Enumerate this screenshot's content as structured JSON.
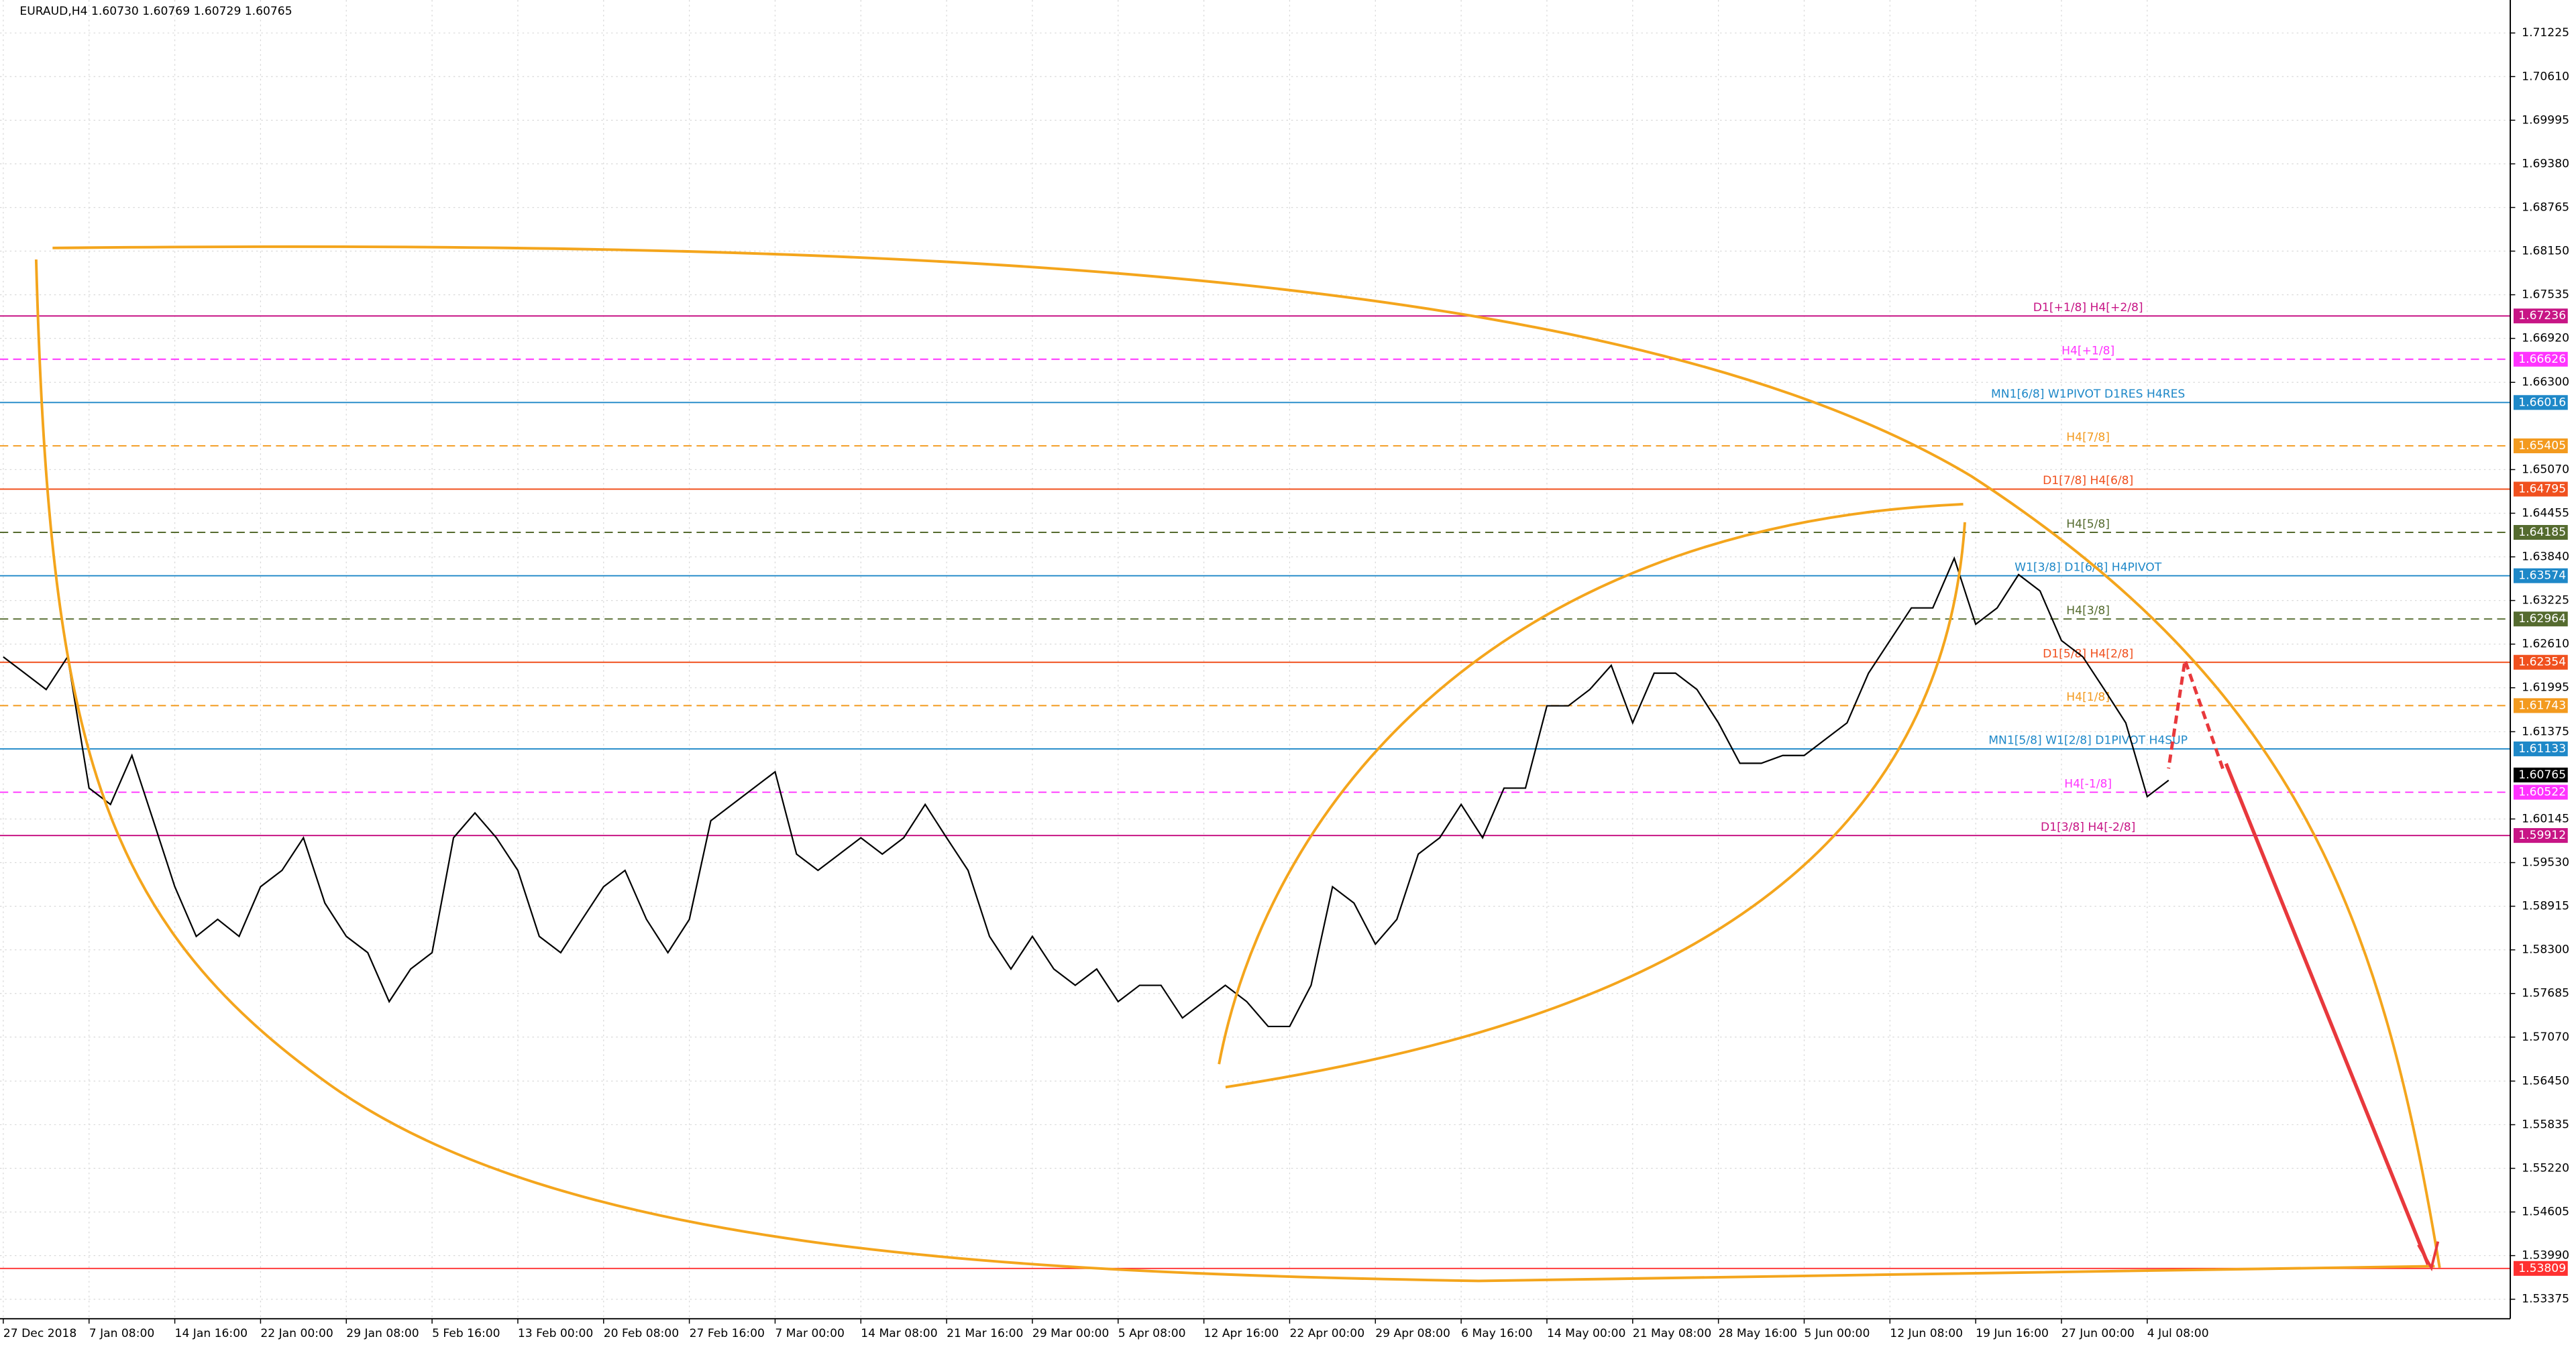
{
  "chart_data": {
    "type": "line",
    "title": "EURAUD,H4  1.60730 1.60769 1.60729 1.60765",
    "color": "#000000",
    "categories": [
      "27 Dec 2018",
      null,
      null,
      null,
      "7 Jan 08:00",
      null,
      null,
      null,
      "14 Jan 16:00",
      null,
      null,
      null,
      "22 Jan 00:00",
      null,
      null,
      null,
      "29 Jan 08:00",
      null,
      null,
      null,
      "5 Feb 16:00",
      null,
      null,
      null,
      "13 Feb 00:00",
      null,
      null,
      null,
      "20 Feb 08:00",
      null,
      null,
      null,
      "27 Feb 16:00",
      null,
      null,
      null,
      "7 Mar 00:00",
      null,
      null,
      null,
      "14 Mar 08:00",
      null,
      null,
      null,
      "21 Mar 16:00",
      null,
      null,
      null,
      "29 Mar 00:00",
      null,
      null,
      null,
      "5 Apr 08:00",
      null,
      null,
      null,
      "12 Apr 16:00",
      null,
      null,
      null,
      "22 Apr 00:00",
      null,
      null,
      null,
      "29 Apr 08:00",
      null,
      null,
      null,
      "6 May 16:00",
      null,
      null,
      null,
      "14 May 00:00",
      null,
      null,
      null,
      "21 May 08:00",
      null,
      null,
      null,
      "28 May 16:00",
      null,
      null,
      null,
      "5 Jun 00:00",
      null,
      null,
      null,
      "12 Jun 08:00",
      null,
      null,
      null,
      "19 Jun 16:00",
      null,
      null,
      null,
      "27 Jun 00:00",
      null,
      null,
      null,
      "4 Jul 08:00",
      null
    ],
    "values": [
      1.6243,
      1.622,
      1.6197,
      1.6243,
      1.6058,
      1.6035,
      1.6104,
      1.6012,
      1.5919,
      1.5849,
      1.5873,
      1.5849,
      1.5919,
      1.5942,
      1.5988,
      1.5896,
      1.5849,
      1.5826,
      1.5757,
      1.5803,
      1.5826,
      1.5988,
      1.6023,
      1.5988,
      1.5942,
      1.5849,
      1.5826,
      1.5873,
      1.5919,
      1.5942,
      1.5873,
      1.5826,
      1.5873,
      1.6012,
      1.6035,
      1.6058,
      1.6081,
      1.5965,
      1.5942,
      1.5965,
      1.5988,
      1.5965,
      1.5988,
      1.6035,
      1.5988,
      1.5942,
      1.5849,
      1.5803,
      1.5849,
      1.5803,
      1.578,
      1.5803,
      1.5757,
      1.578,
      1.578,
      1.5734,
      1.5757,
      1.578,
      1.5757,
      1.5722,
      1.5722,
      1.578,
      1.5919,
      1.5896,
      1.5838,
      1.5873,
      1.5965,
      1.5988,
      1.6035,
      1.5988,
      1.6058,
      1.6058,
      1.6174,
      1.6174,
      1.6197,
      1.6231,
      1.615,
      1.622,
      1.622,
      1.6197,
      1.615,
      1.6093,
      1.6093,
      1.6104,
      1.6104,
      1.6127,
      1.615,
      1.622,
      1.6266,
      1.6312,
      1.6312,
      1.6382,
      1.6289,
      1.6312,
      1.6359,
      1.6336,
      1.6266,
      1.6243,
      1.6197,
      1.615,
      1.6046,
      1.6069
    ],
    "ylim": [
      1.531,
      1.7169
    ],
    "yticks": [
      1.71225,
      {
        "value": 1.7061,
        "label": "1.70610"
      },
      1.69995,
      {
        "value": 1.6938,
        "label": "1.69380"
      },
      1.68765,
      {
        "value": 1.6815,
        "label": "1.68150"
      },
      1.67535,
      {
        "value": 1.6692,
        "label": "1.66920"
      },
      {
        "value": 1.663,
        "label": "1.66300"
      },
      {
        "value": 1.6507,
        "label": "1.65070"
      },
      1.64455,
      {
        "value": 1.6384,
        "label": "1.63840"
      },
      1.63225,
      {
        "value": 1.6261,
        "label": "1.62610"
      },
      1.61995,
      1.61375,
      1.60145,
      {
        "value": 1.5953,
        "label": "1.59530"
      },
      1.58915,
      {
        "value": 1.583,
        "label": "1.58300"
      },
      1.57685,
      {
        "value": 1.5707,
        "label": "1.57070"
      },
      {
        "value": 1.5645,
        "label": "1.56450"
      },
      1.55835,
      {
        "value": 1.5522,
        "label": "1.55220"
      },
      1.54605,
      {
        "value": 1.5399,
        "label": "1.53990"
      },
      1.53375
    ],
    "grid": true,
    "levels": [
      {
        "label": "D1[+1/8] H4[+2/8]",
        "value": 1.67236,
        "color": "#c71585",
        "style": "solid"
      },
      {
        "label": "H4[+1/8]",
        "value": 1.66626,
        "color": "#ff33ff",
        "style": "dashed"
      },
      {
        "label": "MN1[6/8] W1PIVOT D1RES H4RES",
        "value": 1.66016,
        "color": "#1e88c8",
        "style": "solid"
      },
      {
        "label": "H4[7/8]",
        "value": 1.65405,
        "color": "#f39a1e",
        "style": "dashed"
      },
      {
        "label": "D1[7/8] H4[6/8]",
        "value": 1.64795,
        "color": "#f0501e",
        "style": "solid"
      },
      {
        "label": "H4[5/8]",
        "value": 1.64185,
        "color": "#556b2f",
        "style": "dashed"
      },
      {
        "label": "W1[3/8] D1[6/8] H4PIVOT",
        "value": 1.63574,
        "color": "#1e88c8",
        "style": "solid"
      },
      {
        "label": "H4[3/8]",
        "value": 1.62964,
        "color": "#556b2f",
        "style": "dashed"
      },
      {
        "label": "D1[5/8] H4[2/8]",
        "value": 1.62354,
        "color": "#f0501e",
        "style": "solid"
      },
      {
        "label": "H4[1/8]",
        "value": 1.61743,
        "color": "#f39a1e",
        "style": "dashed"
      },
      {
        "label": "MN1[5/8] W1[2/8] D1PIVOT H4SUP",
        "value": 1.61133,
        "color": "#1e88c8",
        "style": "solid"
      },
      {
        "label": "H4[-1/8]",
        "value": 1.60522,
        "color": "#ff33ff",
        "style": "dashed"
      },
      {
        "label": "D1[3/8] H4[-2/8]",
        "value": 1.59912,
        "color": "#c71585",
        "style": "solid"
      },
      {
        "value": 1.53809,
        "color": "#ff3030",
        "style": "solid"
      }
    ],
    "current_price": 1.60765
  }
}
